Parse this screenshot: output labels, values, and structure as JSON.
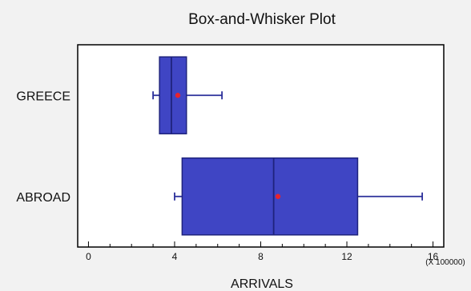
{
  "chart_data": {
    "type": "boxplot",
    "title": "Box-and-Whisker Plot",
    "xlabel": "ARRIVALS",
    "x_multiplier_label": "(X 100000)",
    "xlim": [
      -0.5,
      16.5
    ],
    "x_ticks": [
      0,
      4,
      8,
      12,
      16
    ],
    "orientation": "horizontal",
    "colors": {
      "box_fill": "#3f45c4",
      "box_stroke": "#1f237d",
      "whisker": "#2b2f9a",
      "mean_marker": "#e8232e",
      "background": "#f2f2f2",
      "plot_background": "#ffffff"
    },
    "series": [
      {
        "category": "GREECE",
        "min": 3.0,
        "q1": 3.3,
        "median": 3.85,
        "q3": 4.55,
        "max": 6.2,
        "mean": 4.15
      },
      {
        "category": "ABROAD",
        "min": 4.0,
        "q1": 4.35,
        "median": 8.6,
        "q3": 12.5,
        "max": 15.5,
        "mean": 8.8
      }
    ]
  }
}
